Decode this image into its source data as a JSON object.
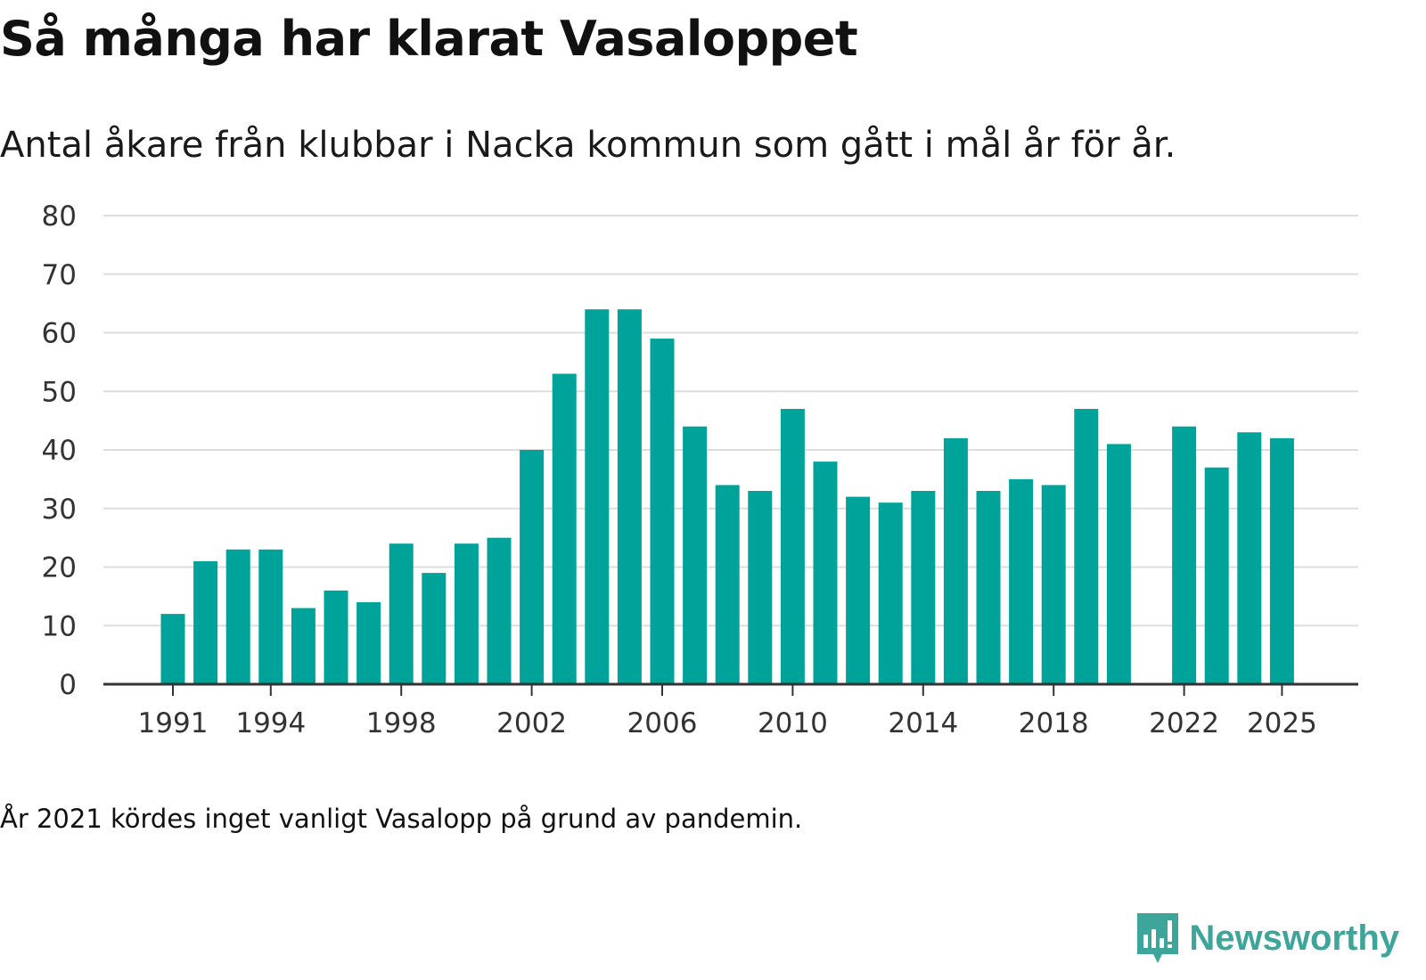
{
  "header": {
    "title": "Så många har klarat Vasaloppet",
    "subtitle": "Antal åkare från klubbar i Nacka kommun som gått i mål år för år."
  },
  "footer": {
    "note": "År 2021 kördes inget vanligt Vasalopp på grund av pandemin.",
    "brand": "Newsworthy",
    "brand_icon": "newsworthy-logo-icon"
  },
  "colors": {
    "bar": "#00a39a",
    "grid": "#dddddd",
    "axis": "#333333",
    "brand": "#3ea59b"
  },
  "chart_data": {
    "type": "bar",
    "title": "Så många har klarat Vasaloppet",
    "subtitle": "Antal åkare från klubbar i Nacka kommun som gått i mål år för år.",
    "xlabel": "",
    "ylabel": "",
    "ylim": [
      0,
      80
    ],
    "yticks": [
      0,
      10,
      20,
      30,
      40,
      50,
      60,
      70,
      80
    ],
    "grid": true,
    "x": [
      1991,
      1992,
      1993,
      1994,
      1995,
      1996,
      1997,
      1998,
      1999,
      2000,
      2001,
      2002,
      2003,
      2004,
      2005,
      2006,
      2007,
      2008,
      2009,
      2010,
      2011,
      2012,
      2013,
      2014,
      2015,
      2016,
      2017,
      2018,
      2019,
      2020,
      2021,
      2022,
      2023,
      2024,
      2025
    ],
    "values": [
      12,
      21,
      23,
      23,
      13,
      16,
      14,
      24,
      19,
      24,
      25,
      40,
      53,
      64,
      64,
      59,
      44,
      34,
      33,
      47,
      38,
      32,
      31,
      33,
      42,
      33,
      35,
      34,
      47,
      41,
      null,
      44,
      37,
      43,
      42
    ],
    "xticks": [
      1991,
      1994,
      1998,
      2002,
      2006,
      2010,
      2014,
      2018,
      2022,
      2025
    ]
  }
}
